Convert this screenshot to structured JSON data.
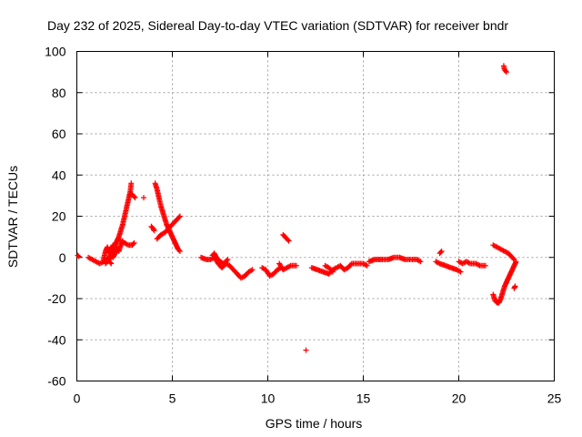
{
  "chart_data": {
    "type": "scatter",
    "title": "Day 232 of 2025, Sidereal Day-to-day VTEC variation (SDTVAR) for receiver bndr",
    "xlabel": "GPS time / hours",
    "ylabel": "SDTVAR / TECUs",
    "xlim": [
      0,
      25
    ],
    "ylim": [
      -60,
      100
    ],
    "xticks": [
      0,
      5,
      10,
      15,
      20,
      25
    ],
    "yticks": [
      -60,
      -40,
      -20,
      0,
      20,
      40,
      60,
      80,
      100
    ],
    "grid": true,
    "marker": "+",
    "color": "#ff0000",
    "segments": [
      [
        [
          0.05,
          1
        ],
        [
          0.1,
          0.5
        ]
      ],
      [
        [
          0.6,
          0
        ],
        [
          0.8,
          -1
        ],
        [
          1.0,
          -2
        ],
        [
          1.2,
          -3
        ],
        [
          1.4,
          -2
        ],
        [
          1.6,
          -1
        ],
        [
          1.8,
          -3
        ]
      ],
      [
        [
          1.4,
          -1
        ],
        [
          1.5,
          3
        ],
        [
          1.6,
          5
        ],
        [
          1.7,
          2
        ],
        [
          1.8,
          4
        ],
        [
          1.9,
          6
        ],
        [
          2.0,
          3
        ],
        [
          2.1,
          5
        ]
      ],
      [
        [
          1.5,
          -3
        ],
        [
          1.6,
          -2
        ],
        [
          1.7,
          0
        ],
        [
          1.8,
          2
        ],
        [
          1.9,
          4
        ],
        [
          2.0,
          6
        ],
        [
          2.1,
          8
        ],
        [
          2.2,
          10
        ],
        [
          2.3,
          13
        ],
        [
          2.4,
          16
        ],
        [
          2.5,
          20
        ],
        [
          2.6,
          24
        ],
        [
          2.7,
          28
        ],
        [
          2.8,
          32
        ],
        [
          2.85,
          36
        ]
      ],
      [
        [
          1.7,
          -1
        ],
        [
          1.8,
          1
        ],
        [
          1.9,
          0
        ],
        [
          2.0,
          2
        ],
        [
          2.1,
          4
        ],
        [
          2.2,
          3
        ],
        [
          2.3,
          6
        ],
        [
          2.4,
          8
        ]
      ],
      [
        [
          2.3,
          8
        ],
        [
          2.5,
          7
        ],
        [
          2.7,
          6
        ],
        [
          2.9,
          6
        ],
        [
          3.0,
          7
        ]
      ],
      [
        [
          2.75,
          30
        ],
        [
          2.85,
          31
        ],
        [
          2.95,
          30
        ],
        [
          3.05,
          29
        ]
      ],
      [
        [
          3.5,
          29
        ]
      ],
      [
        [
          3.9,
          15
        ],
        [
          4.0,
          14
        ],
        [
          4.05,
          13
        ]
      ],
      [
        [
          4.1,
          36
        ],
        [
          4.2,
          33
        ],
        [
          4.3,
          29
        ],
        [
          4.4,
          25
        ],
        [
          4.5,
          22
        ],
        [
          4.6,
          19
        ],
        [
          4.7,
          16
        ],
        [
          4.8,
          14
        ],
        [
          4.9,
          12
        ],
        [
          5.0,
          10
        ],
        [
          5.1,
          8
        ],
        [
          5.2,
          6
        ],
        [
          5.3,
          4
        ],
        [
          5.4,
          3
        ]
      ],
      [
        [
          4.2,
          9
        ],
        [
          4.4,
          11
        ],
        [
          4.6,
          12
        ],
        [
          4.8,
          14
        ],
        [
          5.0,
          16
        ],
        [
          5.2,
          18
        ],
        [
          5.4,
          20
        ]
      ],
      [
        [
          6.5,
          0
        ],
        [
          6.8,
          -1
        ],
        [
          7.0,
          -1
        ],
        [
          7.2,
          0
        ],
        [
          7.4,
          -3
        ],
        [
          7.6,
          -5
        ],
        [
          7.8,
          -3
        ],
        [
          8.0,
          -4
        ],
        [
          8.2,
          -6
        ],
        [
          8.4,
          -8
        ],
        [
          8.6,
          -10
        ],
        [
          8.8,
          -9
        ],
        [
          9.0,
          -7
        ],
        [
          9.2,
          -6
        ]
      ],
      [
        [
          7.1,
          1
        ],
        [
          7.2,
          2
        ],
        [
          7.3,
          0
        ],
        [
          7.5,
          -2
        ],
        [
          7.7,
          -3
        ],
        [
          7.9,
          -1
        ]
      ],
      [
        [
          9.7,
          -5
        ],
        [
          9.9,
          -6
        ],
        [
          10.1,
          -9
        ],
        [
          10.3,
          -8
        ],
        [
          10.5,
          -6
        ],
        [
          10.7,
          -5
        ]
      ],
      [
        [
          10.6,
          -3
        ],
        [
          10.8,
          -6
        ],
        [
          11.0,
          -5
        ],
        [
          11.2,
          -4
        ],
        [
          11.5,
          -4
        ]
      ],
      [
        [
          10.8,
          11
        ],
        [
          10.9,
          10
        ],
        [
          11.0,
          9
        ],
        [
          11.1,
          8
        ]
      ],
      [
        [
          12.0,
          -45
        ]
      ],
      [
        [
          12.3,
          -5
        ],
        [
          12.6,
          -6
        ],
        [
          12.9,
          -7
        ],
        [
          13.2,
          -8
        ],
        [
          13.4,
          -6
        ],
        [
          13.6,
          -5
        ],
        [
          13.8,
          -4
        ],
        [
          14.0,
          -6
        ],
        [
          14.2,
          -5
        ],
        [
          14.4,
          -3
        ],
        [
          14.7,
          -3
        ],
        [
          15.0,
          -3
        ],
        [
          15.2,
          -4
        ]
      ],
      [
        [
          13.0,
          -4
        ],
        [
          13.2,
          -5
        ],
        [
          13.4,
          -7
        ]
      ],
      [
        [
          15.3,
          -2
        ],
        [
          15.6,
          -1
        ],
        [
          16.0,
          -1
        ],
        [
          16.3,
          -1
        ],
        [
          16.6,
          0
        ],
        [
          16.9,
          0
        ],
        [
          17.2,
          -1
        ],
        [
          17.5,
          -1
        ],
        [
          17.8,
          -1
        ],
        [
          18.0,
          -2
        ]
      ],
      [
        [
          18.8,
          -2
        ],
        [
          19.0,
          -3
        ],
        [
          19.3,
          -4
        ],
        [
          19.6,
          -5
        ],
        [
          19.9,
          -6
        ],
        [
          20.1,
          -7
        ]
      ],
      [
        [
          19.0,
          2
        ],
        [
          19.1,
          3
        ]
      ],
      [
        [
          20.0,
          -2
        ],
        [
          20.2,
          -3
        ],
        [
          20.4,
          -2
        ],
        [
          20.6,
          -3
        ],
        [
          20.9,
          -3
        ],
        [
          21.1,
          -4
        ],
        [
          21.4,
          -4
        ]
      ],
      [
        [
          21.8,
          6
        ],
        [
          22.0,
          5
        ],
        [
          22.2,
          4
        ],
        [
          22.4,
          3
        ],
        [
          22.6,
          2
        ],
        [
          22.8,
          0
        ],
        [
          22.9,
          -1
        ]
      ],
      [
        [
          21.8,
          -18
        ],
        [
          21.9,
          -21
        ],
        [
          22.0,
          -22
        ],
        [
          22.1,
          -22
        ],
        [
          22.2,
          -20
        ],
        [
          22.3,
          -17
        ],
        [
          22.4,
          -14
        ],
        [
          22.5,
          -12
        ],
        [
          22.6,
          -10
        ],
        [
          22.7,
          -8
        ],
        [
          22.8,
          -6
        ],
        [
          22.9,
          -4
        ],
        [
          23.0,
          -2
        ]
      ],
      [
        [
          22.9,
          -15
        ],
        [
          22.95,
          -14
        ]
      ],
      [
        [
          22.35,
          93
        ],
        [
          22.4,
          91
        ],
        [
          22.5,
          90
        ]
      ]
    ]
  }
}
